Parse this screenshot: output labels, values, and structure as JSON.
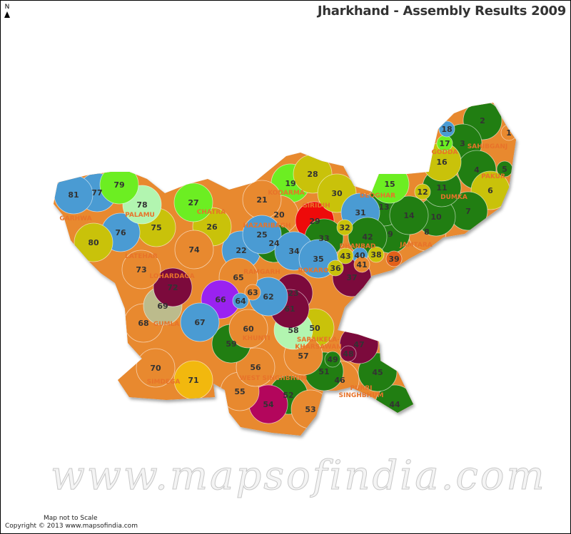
{
  "title": "Jharkhand - Assembly Results 2009",
  "north_label": "N",
  "watermark": "www.mapsofindia.com",
  "footer": {
    "scale_note": "Map not to Scale",
    "copyright": "Copyright © 2013 www.mapsofindia.com"
  },
  "palette": {
    "green": "#217e12",
    "lime": "#6cee22",
    "olive": "#c9c20a",
    "blue": "#4a9bd3",
    "orange": "#e8892f",
    "red": "#ee0a0a",
    "maroon": "#7c0a3c",
    "purple": "#9a22f0",
    "lightgreen": "#b2f5b0",
    "khaki": "#bcbb8c",
    "gold": "#f2b80e",
    "magenta": "#b3065c",
    "darkorange": "#e2601a"
  },
  "district_label_color": "#e8732a",
  "districts": [
    "SAHIBGANJ",
    "GODDA",
    "PAKUR",
    "DUMKA",
    "DEOGHAR",
    "JAMTARA",
    "DHANBAD",
    "BOKARO",
    "GIRIDIH",
    "KODARMA",
    "HAZARIBAGH",
    "CHATRA",
    "PALAMU",
    "GARHWA",
    "LATEHAR",
    "LOHARDAGA",
    "RAMGARH",
    "GUMLA",
    "KHUNTI",
    "SIMDEGA",
    "WEST SINGHBHUM",
    "SARAIKELA-KHARSAWAN",
    "PURBI SINGHBHUM"
  ],
  "constituencies": [
    {
      "n": "1",
      "c": "orange"
    },
    {
      "n": "2",
      "c": "green"
    },
    {
      "n": "3",
      "c": "green"
    },
    {
      "n": "4",
      "c": "green"
    },
    {
      "n": "5",
      "c": "green"
    },
    {
      "n": "6",
      "c": "olive"
    },
    {
      "n": "7",
      "c": "green"
    },
    {
      "n": "8",
      "c": "orange"
    },
    {
      "n": "9",
      "c": "green"
    },
    {
      "n": "10",
      "c": "green"
    },
    {
      "n": "11",
      "c": "green"
    },
    {
      "n": "12",
      "c": "olive"
    },
    {
      "n": "13",
      "c": "green"
    },
    {
      "n": "14",
      "c": "green"
    },
    {
      "n": "15",
      "c": "lime"
    },
    {
      "n": "16",
      "c": "olive"
    },
    {
      "n": "17",
      "c": "lime"
    },
    {
      "n": "18",
      "c": "blue"
    },
    {
      "n": "19",
      "c": "lime"
    },
    {
      "n": "20",
      "c": "orange"
    },
    {
      "n": "21",
      "c": "orange"
    },
    {
      "n": "22",
      "c": "blue"
    },
    {
      "n": "23",
      "c": "maroon"
    },
    {
      "n": "24",
      "c": "green"
    },
    {
      "n": "25",
      "c": "blue"
    },
    {
      "n": "26",
      "c": "olive"
    },
    {
      "n": "27",
      "c": "lime"
    },
    {
      "n": "28",
      "c": "olive"
    },
    {
      "n": "29",
      "c": "red"
    },
    {
      "n": "30",
      "c": "olive"
    },
    {
      "n": "31",
      "c": "blue"
    },
    {
      "n": "32",
      "c": "olive"
    },
    {
      "n": "33",
      "c": "green"
    },
    {
      "n": "34",
      "c": "blue"
    },
    {
      "n": "35",
      "c": "blue"
    },
    {
      "n": "36",
      "c": "olive"
    },
    {
      "n": "37",
      "c": "maroon"
    },
    {
      "n": "38",
      "c": "olive"
    },
    {
      "n": "39",
      "c": "darkorange"
    },
    {
      "n": "40",
      "c": "blue"
    },
    {
      "n": "41",
      "c": "orange"
    },
    {
      "n": "42",
      "c": "green"
    },
    {
      "n": "43",
      "c": "olive"
    },
    {
      "n": "44",
      "c": "green"
    },
    {
      "n": "45",
      "c": "green"
    },
    {
      "n": "46",
      "c": "orange"
    },
    {
      "n": "47",
      "c": "maroon"
    },
    {
      "n": "48",
      "c": "maroon"
    },
    {
      "n": "49",
      "c": "green"
    },
    {
      "n": "50",
      "c": "olive"
    },
    {
      "n": "51",
      "c": "green"
    },
    {
      "n": "52",
      "c": "green"
    },
    {
      "n": "53",
      "c": "orange"
    },
    {
      "n": "54",
      "c": "magenta"
    },
    {
      "n": "55",
      "c": "orange"
    },
    {
      "n": "56",
      "c": "orange"
    },
    {
      "n": "57",
      "c": "orange"
    },
    {
      "n": "58",
      "c": "lightgreen"
    },
    {
      "n": "59",
      "c": "green"
    },
    {
      "n": "60",
      "c": "orange"
    },
    {
      "n": "61",
      "c": "maroon"
    },
    {
      "n": "62",
      "c": "blue"
    },
    {
      "n": "63",
      "c": "orange"
    },
    {
      "n": "64",
      "c": "blue"
    },
    {
      "n": "65",
      "c": "orange"
    },
    {
      "n": "66",
      "c": "purple"
    },
    {
      "n": "67",
      "c": "blue"
    },
    {
      "n": "68",
      "c": "orange"
    },
    {
      "n": "69",
      "c": "khaki"
    },
    {
      "n": "70",
      "c": "orange"
    },
    {
      "n": "71",
      "c": "gold"
    },
    {
      "n": "72",
      "c": "maroon"
    },
    {
      "n": "73",
      "c": "orange"
    },
    {
      "n": "74",
      "c": "orange"
    },
    {
      "n": "75",
      "c": "olive"
    },
    {
      "n": "76",
      "c": "blue"
    },
    {
      "n": "77",
      "c": "blue"
    },
    {
      "n": "78",
      "c": "lightgreen"
    },
    {
      "n": "79",
      "c": "lime"
    },
    {
      "n": "80",
      "c": "olive"
    },
    {
      "n": "81",
      "c": "blue"
    }
  ]
}
